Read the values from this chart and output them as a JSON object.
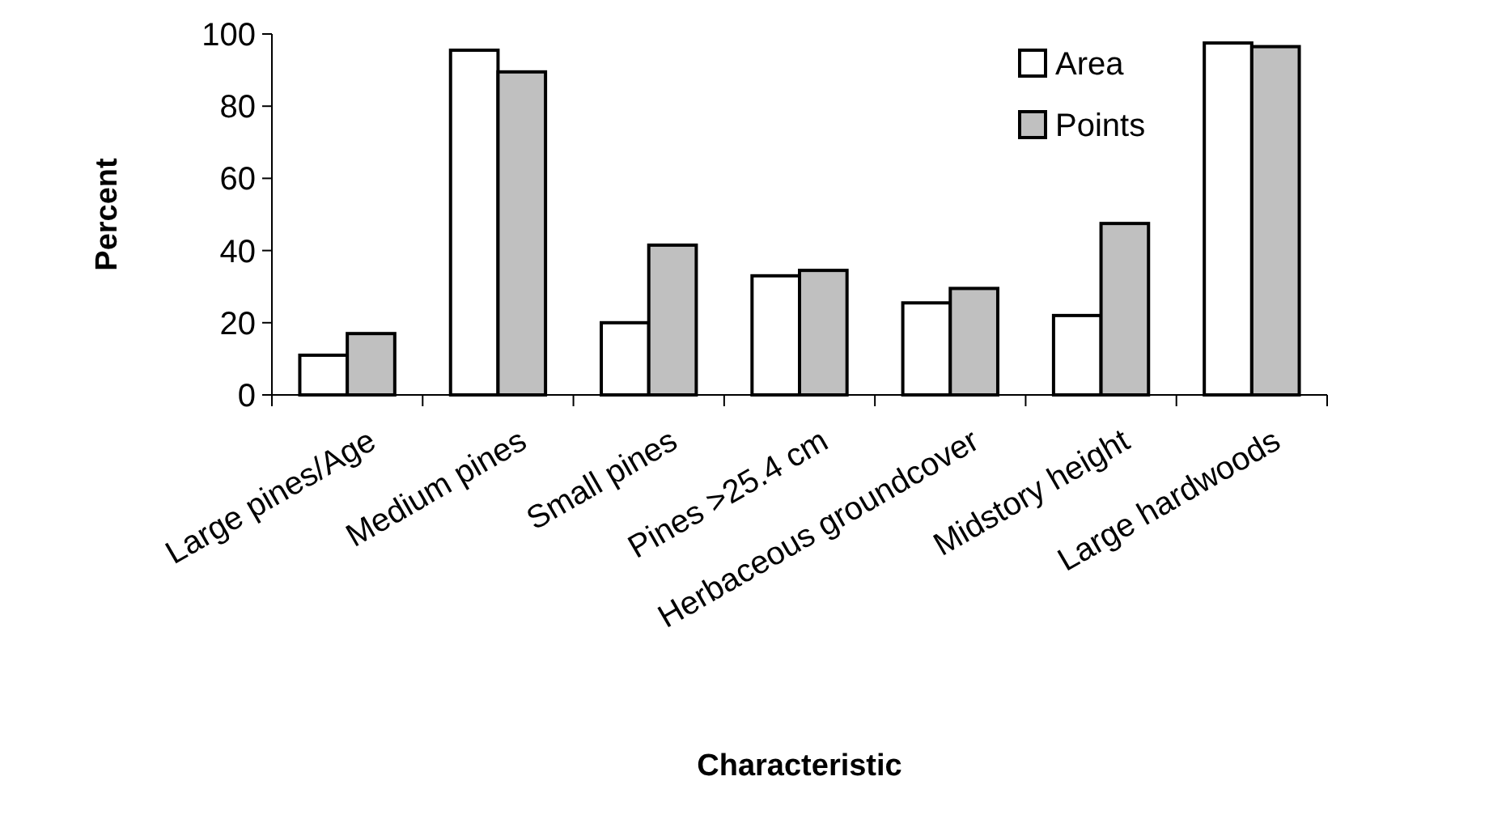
{
  "chart_data": {
    "type": "bar",
    "xlabel": "Characteristic",
    "ylabel": "Percent",
    "categories": [
      "Large pines/Age",
      "Medium pines",
      "Small pines",
      "Pines >25.4 cm",
      "Herbaceous groundcover",
      "Midstory height",
      "Large hardwoods"
    ],
    "series": [
      {
        "name": "Area",
        "color": "#ffffff",
        "values": [
          11,
          95.5,
          20,
          33,
          25.5,
          22,
          97.5
        ]
      },
      {
        "name": "Points",
        "color": "#c0c0c0",
        "values": [
          17,
          89.5,
          41.5,
          34.5,
          29.5,
          47.5,
          96.5
        ]
      }
    ],
    "ylim": [
      0,
      100
    ],
    "yticks": [
      0,
      20,
      40,
      60,
      80,
      100
    ],
    "grid": false,
    "legend": "top right"
  }
}
